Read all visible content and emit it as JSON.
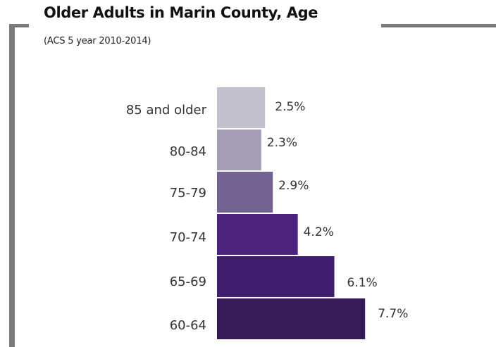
{
  "chart_data": {
    "type": "bar",
    "orientation": "horizontal",
    "title": "Older Adults in Marin County, Age",
    "subtitle": "(ACS 5 year 2010-2014)",
    "categories": [
      "85 and older",
      "80-84",
      "75-79",
      "70-74",
      "65-69",
      "60-64"
    ],
    "values": [
      2.5,
      2.3,
      2.9,
      4.2,
      6.1,
      7.7
    ],
    "value_labels": [
      "2.5%",
      "2.3%",
      "2.9%",
      "4.2%",
      "6.1%",
      "7.7%"
    ],
    "bar_colors": [
      "#c3c0cd",
      "#a39cb3",
      "#726292",
      "#4c2480",
      "#3f1e6c",
      "#351c56"
    ],
    "xlabel": "",
    "ylabel": "",
    "grid": false,
    "legend": "none"
  }
}
